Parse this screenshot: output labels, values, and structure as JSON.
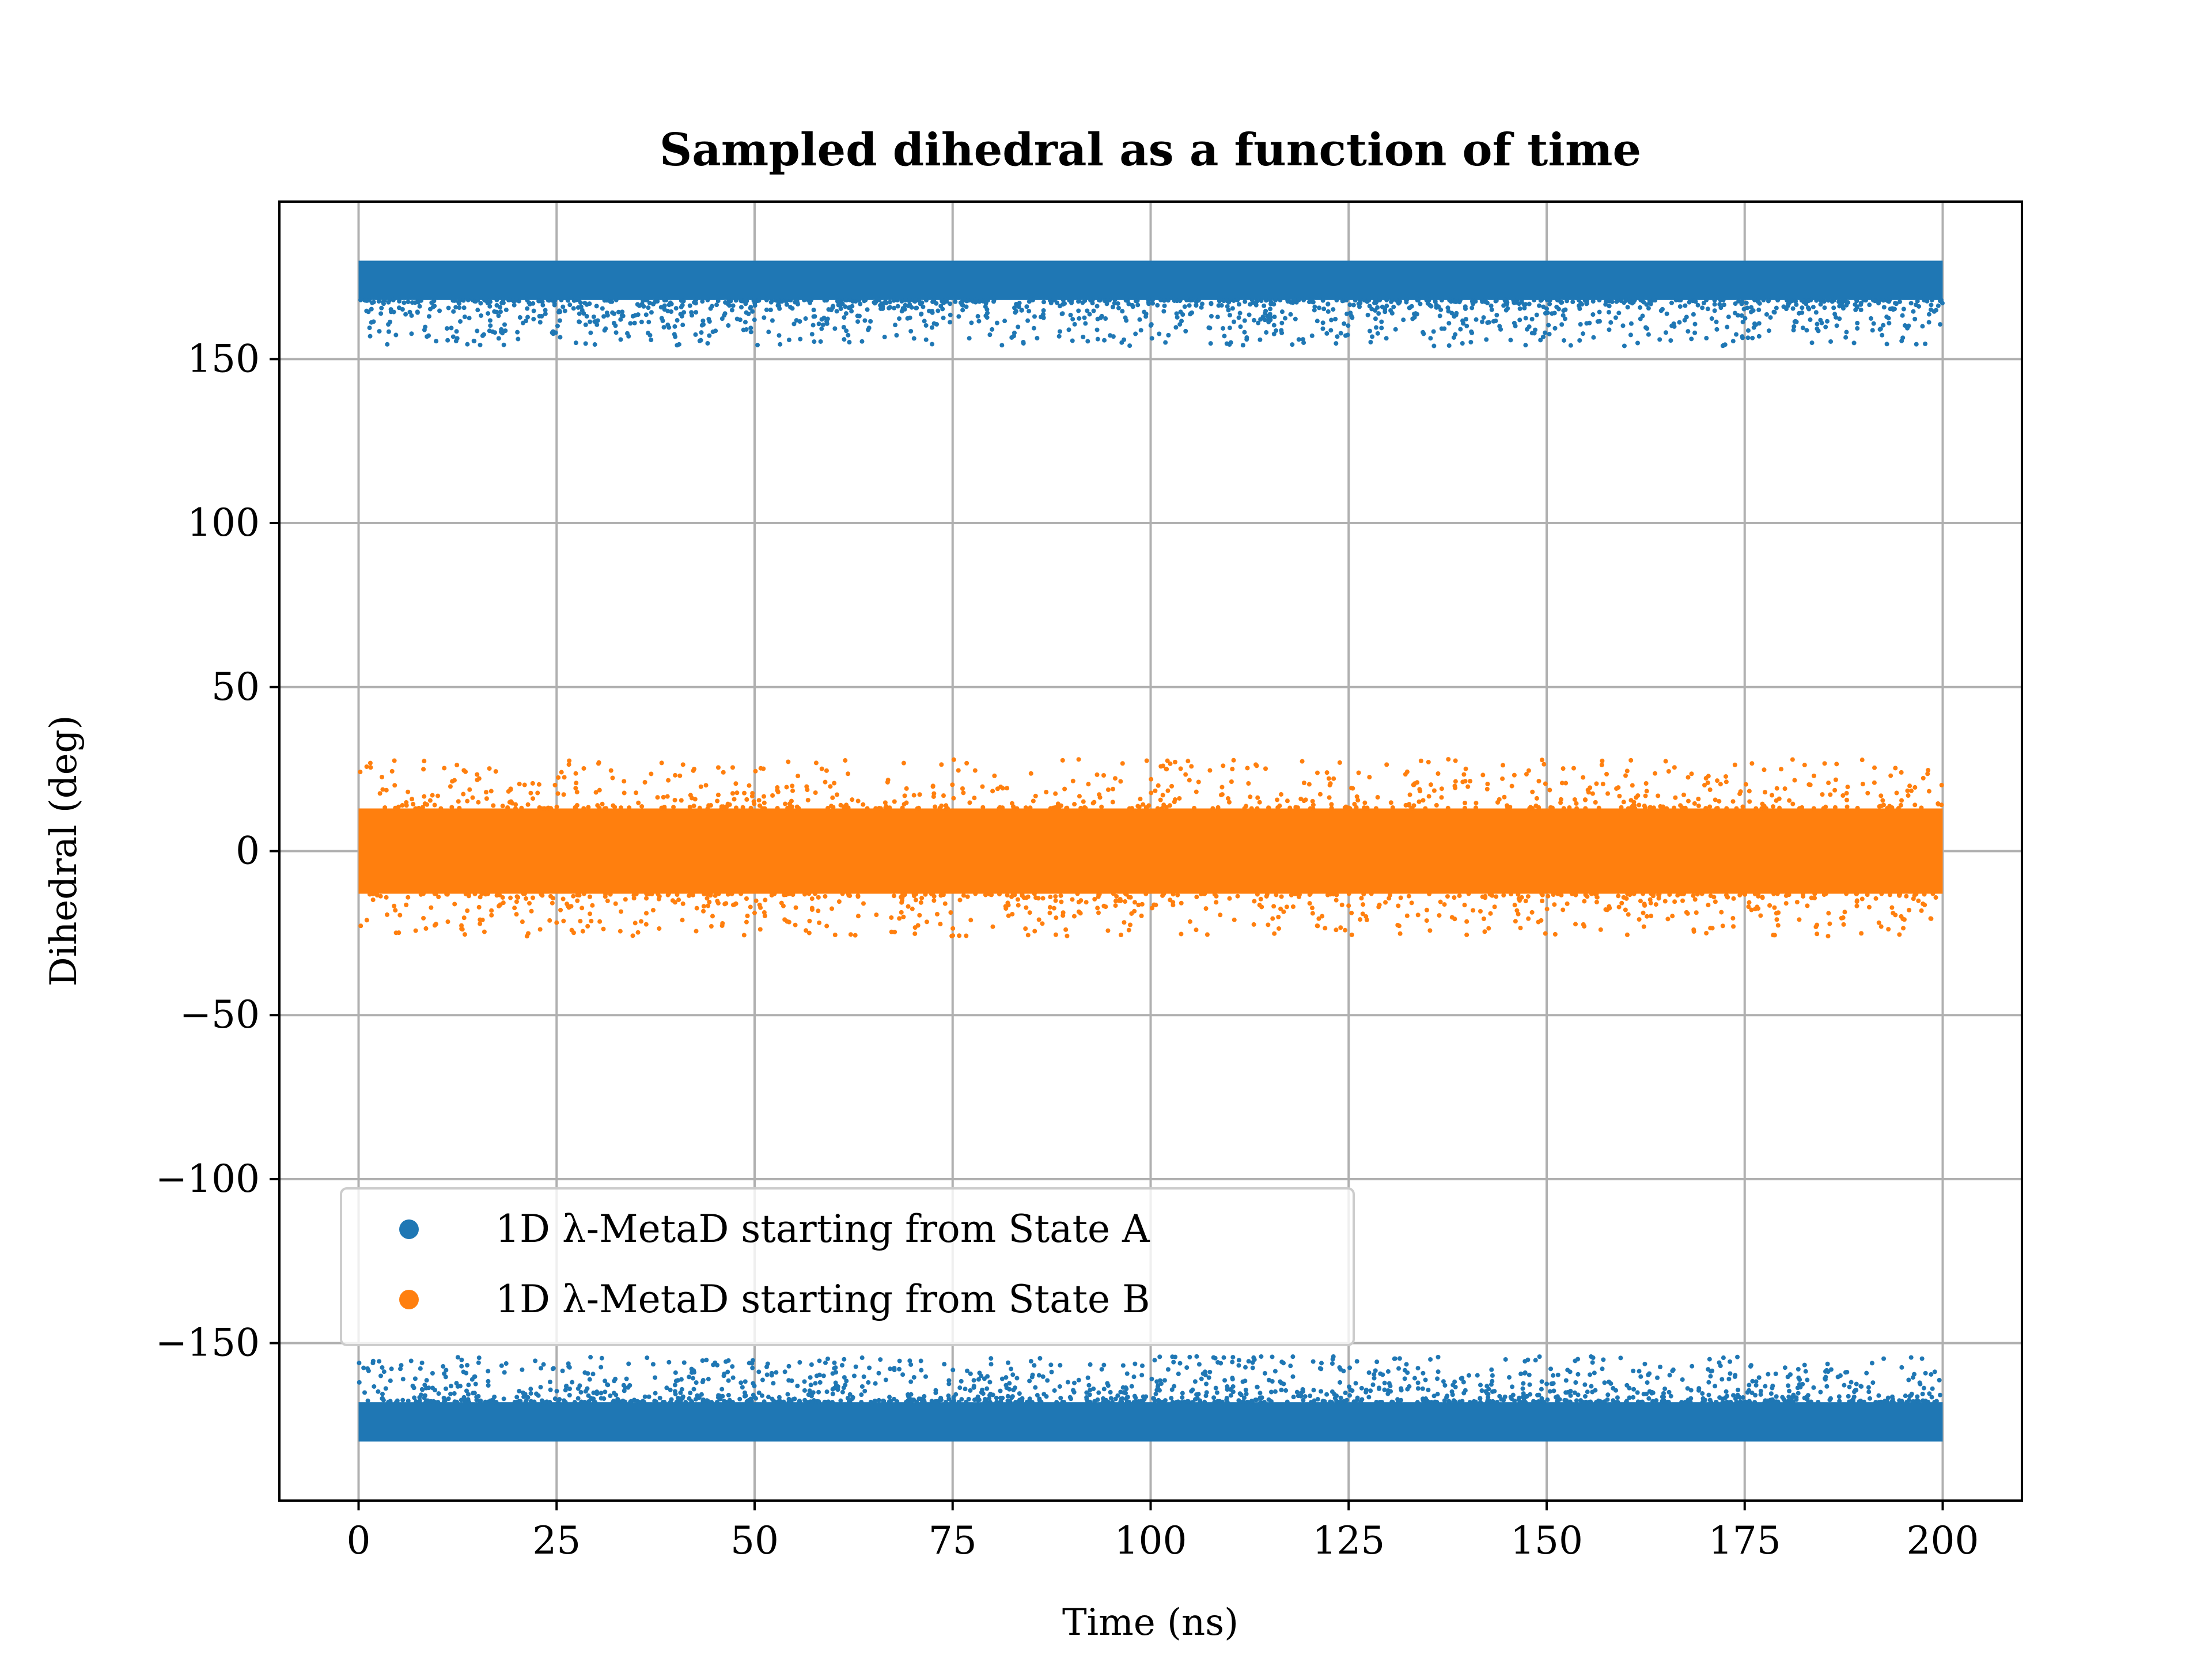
{
  "chart_data": {
    "type": "scatter",
    "title": "Sampled dihedral as a function of time",
    "xlabel": "Time (ns)",
    "ylabel": "Dihedral (deg)",
    "xlim": [
      -10,
      210
    ],
    "ylim": [
      -198,
      198
    ],
    "xticks": [
      0,
      25,
      50,
      75,
      100,
      125,
      150,
      175,
      200
    ],
    "xtick_labels": [
      "0",
      "25",
      "50",
      "75",
      "100",
      "125",
      "150",
      "175",
      "200"
    ],
    "yticks": [
      -150,
      -100,
      -50,
      0,
      50,
      100,
      150
    ],
    "ytick_labels": [
      "−150",
      "−100",
      "−50",
      "0",
      "50",
      "100",
      "150"
    ],
    "grid": true,
    "legend": {
      "position": "lower-left"
    },
    "series": [
      {
        "name": "1D λ-MetaD starting from State A",
        "color": "#1f77b4",
        "x_range": [
          0,
          200
        ],
        "bands": [
          {
            "core": [
              168,
              180
            ],
            "min": 154
          },
          {
            "core": [
              -180,
              -168
            ],
            "max": -154
          }
        ]
      },
      {
        "name": "1D λ-MetaD starting from State B",
        "color": "#ff7f0e",
        "x_range": [
          0,
          200
        ],
        "bands": [
          {
            "core": [
              -13,
              13
            ],
            "min": -26,
            "max": 28
          }
        ]
      }
    ]
  }
}
